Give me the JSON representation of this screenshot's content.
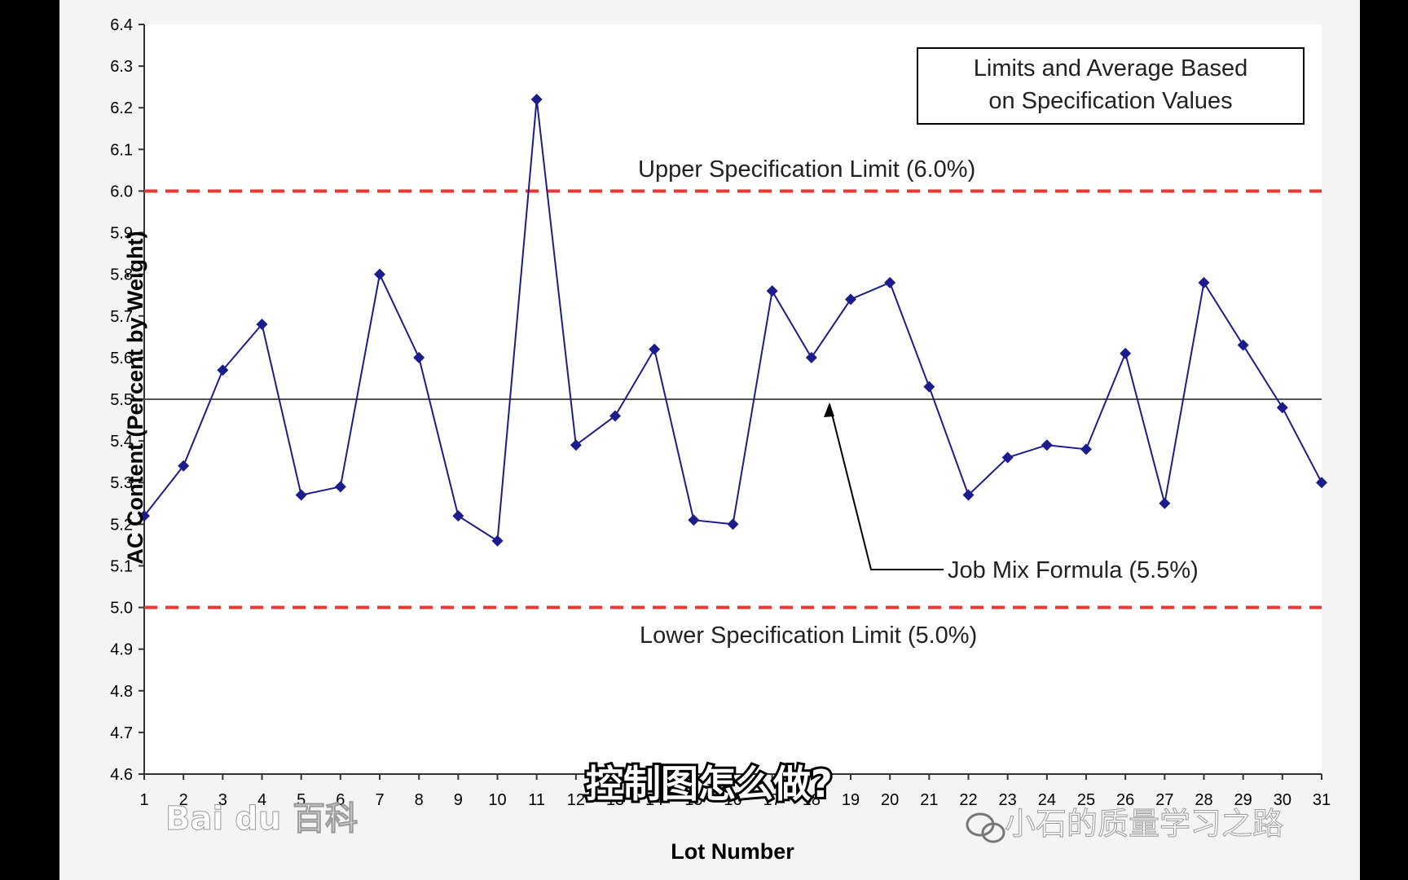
{
  "chart_data": {
    "type": "line",
    "x": [
      1,
      2,
      3,
      4,
      5,
      6,
      7,
      8,
      9,
      10,
      11,
      12,
      13,
      14,
      15,
      16,
      17,
      18,
      19,
      20,
      21,
      22,
      23,
      24,
      25,
      26,
      27,
      28,
      29,
      30,
      31
    ],
    "categories": [
      "1",
      "2",
      "3",
      "4",
      "5",
      "6",
      "7",
      "8",
      "9",
      "10",
      "11",
      "12",
      "13",
      "14",
      "15",
      "16",
      "17",
      "18",
      "19",
      "20",
      "21",
      "22",
      "23",
      "24",
      "25",
      "26",
      "27",
      "28",
      "29",
      "30",
      "31"
    ],
    "series": [
      {
        "values": [
          5.22,
          5.34,
          5.57,
          5.68,
          5.27,
          5.29,
          5.8,
          5.6,
          5.22,
          5.16,
          6.22,
          5.39,
          5.46,
          5.62,
          5.21,
          5.2,
          5.76,
          5.6,
          5.74,
          5.78,
          5.53,
          5.27,
          5.36,
          5.39,
          5.38,
          5.61,
          5.25,
          5.78,
          5.63,
          5.48,
          5.3
        ]
      }
    ],
    "xlabel": "Lot Number",
    "ylabel": "AC Content (Percent by Weight)",
    "ylim": [
      4.6,
      6.4
    ],
    "yticks": [
      "4.6",
      "4.7",
      "4.8",
      "4.9",
      "5.0",
      "5.1",
      "5.2",
      "5.3",
      "5.4",
      "5.5",
      "5.6",
      "5.7",
      "5.8",
      "5.9",
      "6.0",
      "6.1",
      "6.2",
      "6.3",
      "6.4"
    ],
    "reference_lines": [
      {
        "value": 6.0,
        "label": "Upper Specification Limit (6.0%)",
        "style": "dashed",
        "color": "#e53935"
      },
      {
        "value": 5.5,
        "label": "Job Mix Formula (5.5%)",
        "style": "solid",
        "color": "#555555"
      },
      {
        "value": 5.0,
        "label": "Lower Specification Limit (5.0%)",
        "style": "dashed",
        "color": "#e53935"
      }
    ],
    "annotation_box": "Limits and Average Based on Specification Values",
    "grid": false,
    "colors": {
      "series": "#1c1c8c",
      "marker": "#1c1c8c",
      "background": "#f4f4f4"
    }
  },
  "overlay": {
    "subtitle": "控制图怎么做?",
    "watermark_left": "Bai du 百科",
    "watermark_right": "小石的质量学习之路"
  }
}
